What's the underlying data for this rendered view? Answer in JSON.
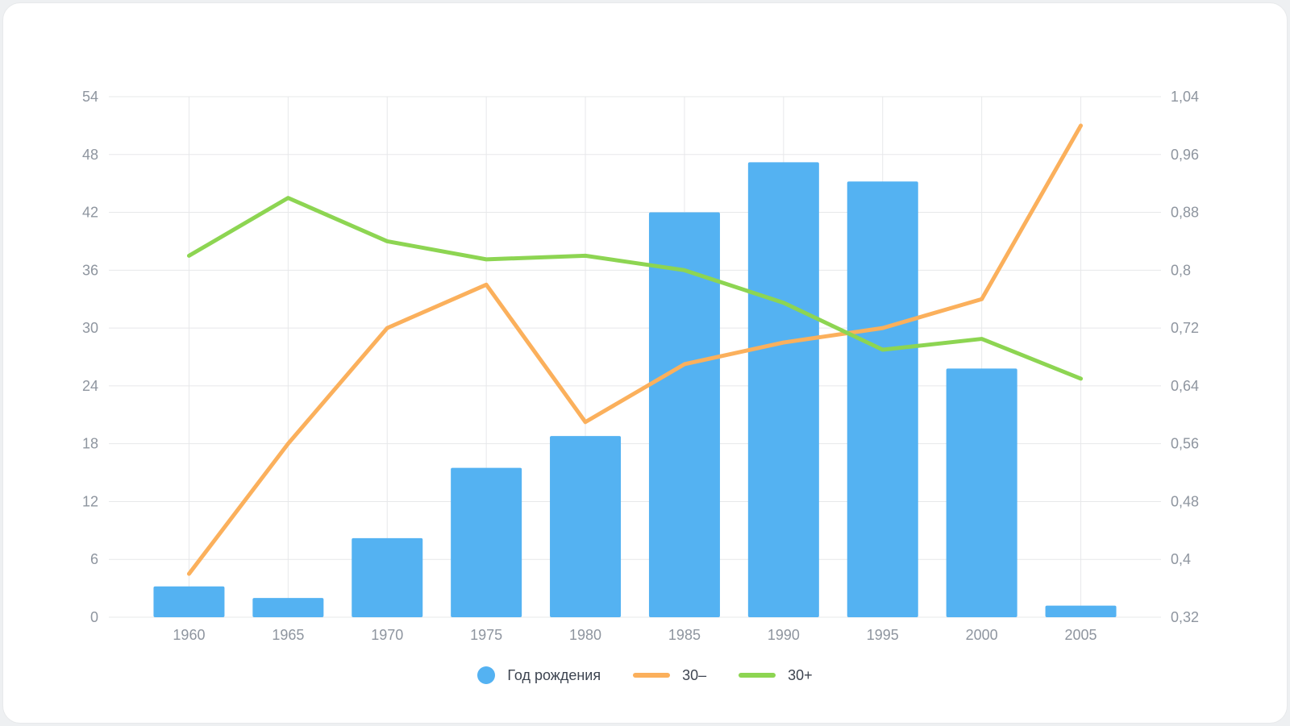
{
  "page": {
    "background": "#EEF0F2",
    "card_background": "#FFFFFF"
  },
  "chart_data": {
    "type": "bar",
    "subtype": "combo-bar-line-dual-axis",
    "categories": [
      "1960",
      "1965",
      "1970",
      "1975",
      "1980",
      "1985",
      "1990",
      "1995",
      "2000",
      "2005"
    ],
    "series": [
      {
        "name": "Год рождения",
        "type": "bar",
        "axis": "left",
        "color": "#54B2F2",
        "values": [
          3.2,
          2,
          8.2,
          15.5,
          18.8,
          42,
          47.2,
          45.2,
          25.8,
          1.2
        ]
      },
      {
        "name": "30–",
        "type": "line",
        "axis": "right",
        "color": "#FBB05C",
        "values": [
          0.38,
          0.56,
          0.72,
          0.78,
          0.59,
          0.67,
          0.7,
          0.72,
          0.76,
          1.0
        ]
      },
      {
        "name": "30+",
        "type": "line",
        "axis": "right",
        "color": "#8DD552",
        "values": [
          0.82,
          0.9,
          0.84,
          0.815,
          0.82,
          0.8,
          0.755,
          0.69,
          0.705,
          0.65
        ]
      }
    ],
    "left_axis": {
      "min": 0,
      "max": 54,
      "step": 6,
      "tick_labels": [
        "0",
        "6",
        "12",
        "18",
        "24",
        "30",
        "36",
        "42",
        "48",
        "54"
      ]
    },
    "right_axis": {
      "min": 0.32,
      "max": 1.04,
      "step": 0.08,
      "tick_labels": [
        "0,32",
        "0,4",
        "0,48",
        "0,56",
        "0,64",
        "0,72",
        "0,8",
        "0,88",
        "0,96",
        "1,04"
      ]
    },
    "title": "",
    "xlabel": "",
    "ylabel": "",
    "grid": true,
    "legend_position": "bottom",
    "colors": {
      "grid": "#E7E8EA",
      "axis_text": "#8E959F",
      "legend_text": "#3D4450"
    }
  }
}
